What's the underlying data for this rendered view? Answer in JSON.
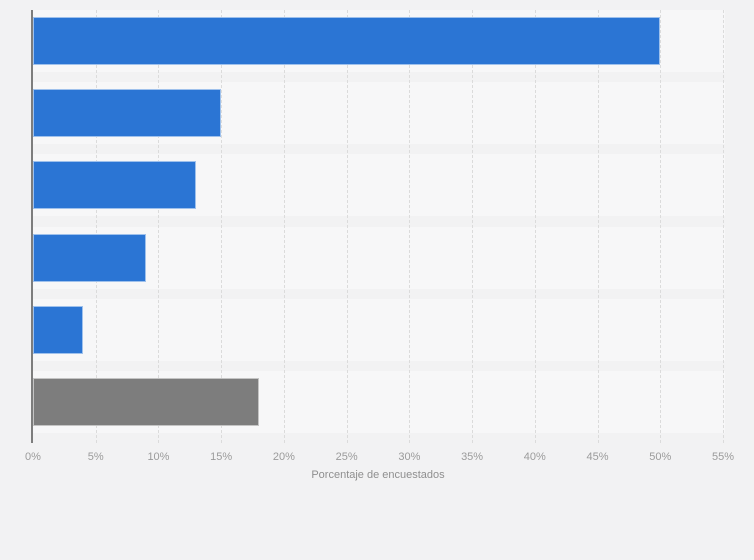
{
  "page": {
    "background_color": "#f2f2f3"
  },
  "chart_data": {
    "type": "bar",
    "orientation": "horizontal",
    "title": "",
    "xlabel": "Porcentaje de encuestados",
    "ylabel": "",
    "categories": [
      "",
      "",
      "",
      "",
      "",
      ""
    ],
    "category_labels_visible": false,
    "values": [
      50,
      15,
      13,
      9,
      4,
      18
    ],
    "unit": "%",
    "xlim": [
      0,
      55
    ],
    "x_tick_step": 5,
    "x_tick_labels": [
      "0%",
      "5%",
      "10%",
      "15%",
      "20%",
      "25%",
      "30%",
      "35%",
      "40%",
      "45%",
      "50%",
      "55%"
    ],
    "grid": "vertical-dashed",
    "legend": "none",
    "bar_colors": [
      "#2b75d4",
      "#2b75d4",
      "#2b75d4",
      "#2b75d4",
      "#2b75d4",
      "#7d7d7d"
    ],
    "colors": {
      "primary_bar": "#2b75d4",
      "highlight_bar": "#7d7d7d",
      "page_background": "#f2f2f3",
      "row_band": "#f7f7f8",
      "gridline": "#dbdbdb",
      "axis_line": "#7d7d7d",
      "tick_label_text": "#9b9b9b",
      "axis_title_text": "#8f8f8f"
    }
  }
}
